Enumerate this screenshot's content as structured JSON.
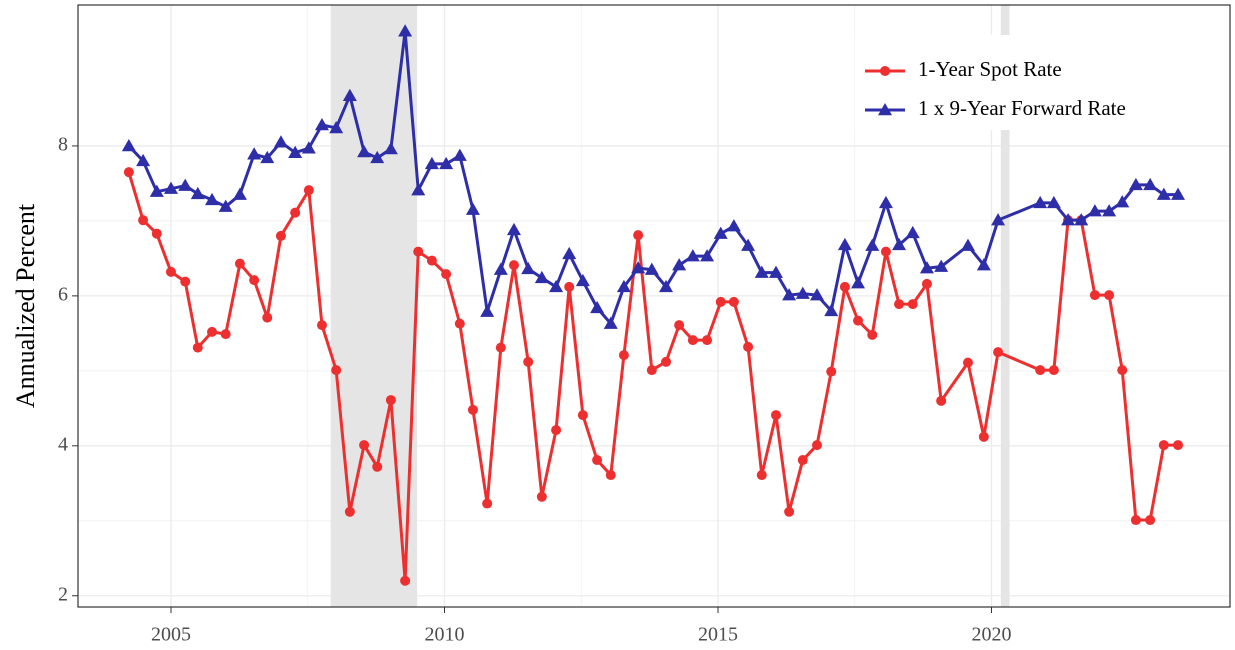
{
  "chart_data": {
    "type": "line",
    "y_label": "Annualized Percent",
    "xlim": [
      2003.3,
      2024.36
    ],
    "xticks": [
      2005,
      2010,
      2015,
      2020
    ],
    "ylim": [
      1.85,
      9.88
    ],
    "yticks": [
      2,
      4,
      6,
      8
    ],
    "grid": true,
    "minor_grid": true,
    "legend_position": "top-right",
    "shaded_periods": [
      [
        2007.92,
        2009.5
      ],
      [
        2020.17,
        2020.33
      ]
    ],
    "shade_color": "#e5e5e5",
    "x": [
      2004.23,
      2004.49,
      2004.74,
      2005.0,
      2005.26,
      2005.49,
      2005.75,
      2006.0,
      2006.26,
      2006.52,
      2006.76,
      2007.01,
      2007.27,
      2007.52,
      2007.76,
      2008.02,
      2008.27,
      2008.53,
      2008.77,
      2009.02,
      2009.28,
      2009.52,
      2009.77,
      2010.03,
      2010.28,
      2010.52,
      2010.78,
      2011.03,
      2011.27,
      2011.53,
      2011.78,
      2012.04,
      2012.28,
      2012.53,
      2012.79,
      2013.04,
      2013.28,
      2013.54,
      2013.79,
      2014.05,
      2014.29,
      2014.54,
      2014.8,
      2015.05,
      2015.29,
      2015.55,
      2015.8,
      2016.06,
      2016.3,
      2016.55,
      2016.81,
      2017.07,
      2017.32,
      2017.56,
      2017.82,
      2018.07,
      2018.31,
      2018.56,
      2018.82,
      2019.08,
      2019.57,
      2019.86,
      2020.12,
      2020.89,
      2021.14,
      2021.4,
      2021.64,
      2021.89,
      2022.15,
      2022.39,
      2022.64,
      2022.9,
      2023.15,
      2023.41
    ],
    "series": [
      {
        "name": "1-Year Spot Rate",
        "color": "#ee2f2f",
        "marker": "circle",
        "values": [
          7.65,
          7.01,
          6.83,
          6.32,
          6.19,
          5.31,
          5.52,
          5.49,
          6.43,
          6.21,
          5.71,
          6.8,
          7.11,
          7.41,
          5.61,
          5.01,
          3.12,
          4.01,
          3.72,
          4.61,
          2.2,
          6.59,
          6.47,
          6.29,
          5.63,
          4.48,
          3.23,
          5.31,
          6.41,
          5.12,
          3.32,
          4.21,
          6.12,
          4.41,
          3.81,
          3.61,
          5.21,
          6.81,
          5.01,
          5.12,
          5.61,
          5.41,
          5.41,
          5.92,
          5.92,
          5.32,
          3.61,
          4.41,
          3.12,
          3.81,
          4.01,
          4.99,
          6.12,
          5.67,
          5.48,
          6.59,
          5.89,
          5.89,
          6.16,
          4.6,
          5.11,
          4.12,
          5.25,
          5.01,
          5.01,
          7.01,
          7.01,
          6.01,
          6.01,
          5.01,
          3.01,
          3.01,
          4.01,
          4.01
        ]
      },
      {
        "name": "1 x 9-Year Forward Rate",
        "color": "#2e2ea8",
        "marker": "triangle",
        "values": [
          8.0,
          7.8,
          7.39,
          7.43,
          7.47,
          7.36,
          7.28,
          7.19,
          7.35,
          7.89,
          7.84,
          8.05,
          7.91,
          7.97,
          8.28,
          8.24,
          8.67,
          7.92,
          7.84,
          7.96,
          9.53,
          7.41,
          7.76,
          7.76,
          7.87,
          7.15,
          5.79,
          6.35,
          6.88,
          6.36,
          6.24,
          6.12,
          6.56,
          6.2,
          5.84,
          5.63,
          6.12,
          6.37,
          6.35,
          6.12,
          6.41,
          6.53,
          6.53,
          6.83,
          6.93,
          6.67,
          6.31,
          6.31,
          6.01,
          6.03,
          6.01,
          5.8,
          6.68,
          6.17,
          6.67,
          7.24,
          6.68,
          6.84,
          6.37,
          6.39,
          6.67,
          6.41,
          7.01,
          7.24,
          7.24,
          7.01,
          7.01,
          7.13,
          7.13,
          7.25,
          7.48,
          7.48,
          7.35,
          7.35
        ]
      }
    ]
  }
}
